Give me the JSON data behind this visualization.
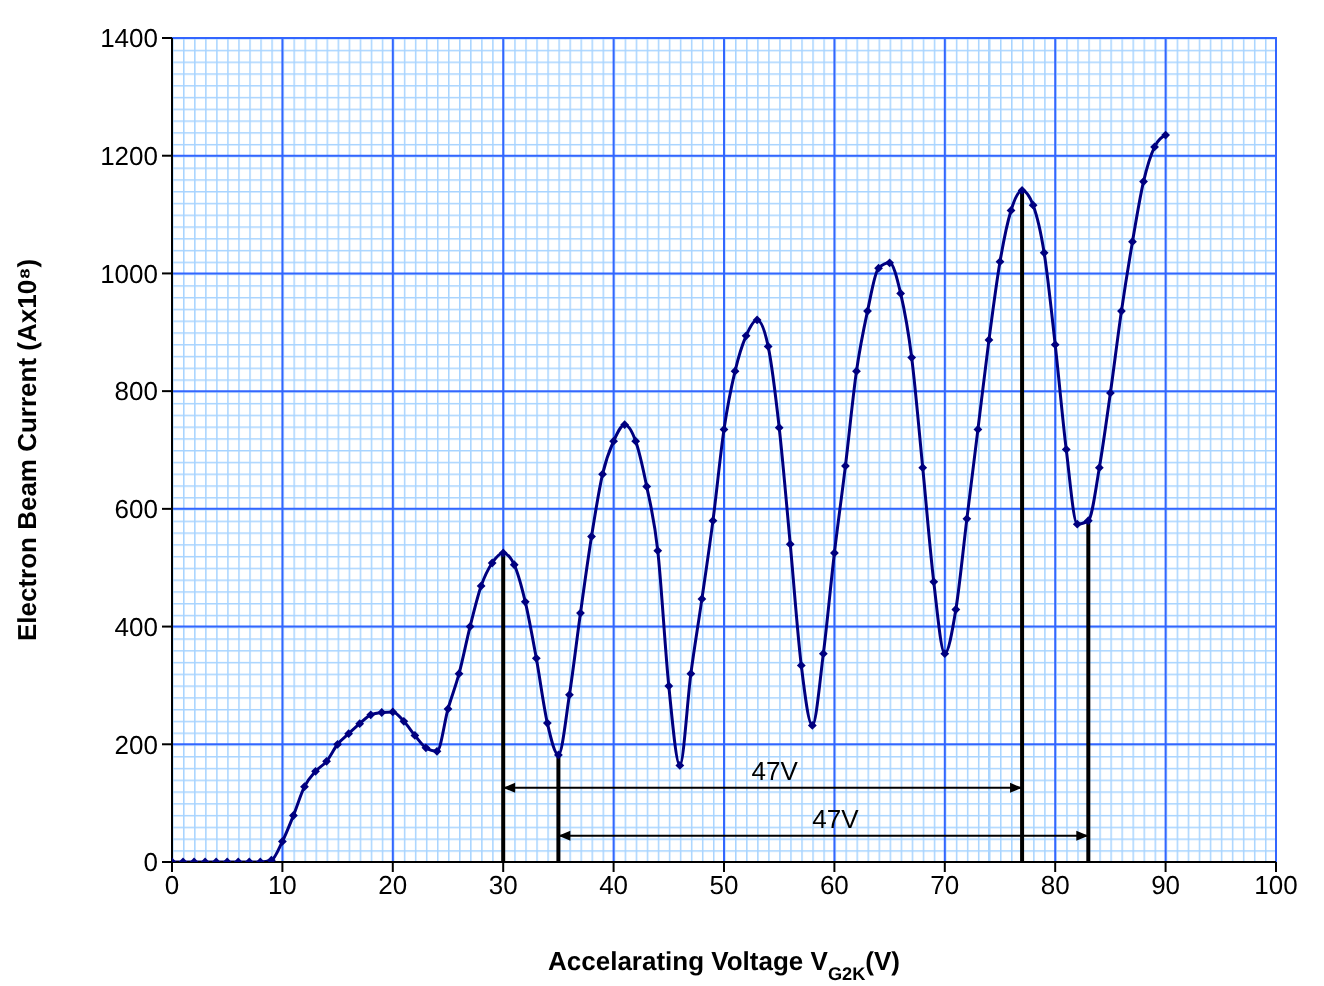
{
  "chart_data": {
    "type": "line",
    "xlabel": "Accelarating Voltage V$_{G2K}$(V)",
    "ylabel": "Electron Beam Current (Ax10⁸)",
    "x": [
      0,
      1,
      2,
      3,
      4,
      5,
      6,
      7,
      8,
      9,
      10,
      11,
      12,
      13,
      14,
      15,
      16,
      17,
      18,
      19,
      20,
      21,
      22,
      23,
      24,
      25,
      26,
      27,
      28,
      29,
      30,
      31,
      32,
      33,
      34,
      35,
      36,
      37,
      38,
      39,
      40,
      41,
      42,
      43,
      44,
      45,
      46,
      47,
      48,
      49,
      50,
      51,
      52,
      53,
      54,
      55,
      56,
      57,
      58,
      59,
      60,
      61,
      62,
      63,
      64,
      65,
      66,
      67,
      68,
      69,
      70,
      71,
      72,
      73,
      74,
      75,
      76,
      77,
      78,
      79,
      80,
      81,
      82,
      83,
      84,
      85,
      86,
      87,
      88,
      89,
      90
    ],
    "series": [
      {
        "color": "#000080",
        "values": [
          0,
          0,
          0,
          0,
          0,
          0,
          0,
          0,
          0,
          3,
          35,
          79,
          128,
          154,
          171,
          200,
          218,
          235,
          250,
          254,
          255,
          239,
          215,
          194,
          188,
          260,
          320,
          400,
          469,
          508,
          525,
          505,
          442,
          346,
          236,
          182,
          284,
          423,
          553,
          659,
          715,
          743,
          715,
          638,
          529,
          299,
          164,
          320,
          447,
          580,
          735,
          834,
          894,
          921,
          876,
          738,
          540,
          334,
          232,
          354,
          525,
          673,
          834,
          936,
          1009,
          1018,
          966,
          857,
          670,
          476,
          354,
          429,
          583,
          735,
          887,
          1020,
          1107,
          1141,
          1116,
          1035,
          879,
          701,
          574,
          580,
          670,
          797,
          936,
          1054,
          1156,
          1215,
          1235
        ]
      }
    ],
    "xlim": [
      0,
      100
    ],
    "xticks": [
      0,
      10,
      20,
      30,
      40,
      50,
      60,
      70,
      80,
      90,
      100
    ],
    "ylim": [
      0,
      1400
    ],
    "yticks": [
      0,
      200,
      400,
      600,
      800,
      1000,
      1200,
      1400
    ],
    "grid": true,
    "marker": "diamond",
    "line_style": "solid",
    "ref_lines": [
      {
        "axis": "x",
        "value": 30,
        "color": "#000000"
      },
      {
        "axis": "x",
        "value": 35,
        "color": "#000000"
      },
      {
        "axis": "x",
        "value": 77,
        "color": "#000000"
      },
      {
        "axis": "x",
        "value": 83,
        "color": "#000000"
      }
    ],
    "annotations": [
      "47V",
      "47V"
    ]
  }
}
